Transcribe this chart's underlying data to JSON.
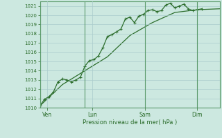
{
  "background_color": "#cce8e0",
  "plot_bg_color": "#cce8e0",
  "grid_color": "#aacccc",
  "line_color": "#2d6e2d",
  "spine_color": "#5a9a6a",
  "xlabel": "Pression niveau de la mer( hPa )",
  "ylim": [
    1010,
    1021.5
  ],
  "ytick_vals": [
    1010,
    1011,
    1012,
    1013,
    1014,
    1015,
    1016,
    1017,
    1018,
    1019,
    1020,
    1021
  ],
  "xtick_labels": [
    "Ven",
    "Lun",
    "Sam",
    "Dim"
  ],
  "xtick_positions": [
    0.5,
    3.5,
    7.0,
    10.5
  ],
  "vline_positions": [
    0.0,
    3.0,
    7.0,
    10.5
  ],
  "xlim": [
    0.0,
    12.0
  ],
  "series1_x": [
    0.0,
    0.3,
    0.6,
    0.9,
    1.2,
    1.5,
    1.8,
    2.1,
    2.4,
    2.7,
    3.0,
    3.3,
    3.6,
    3.9,
    4.2,
    4.5,
    4.8,
    5.1,
    5.4,
    5.7,
    6.0,
    6.3,
    6.6,
    6.9,
    7.2,
    7.5,
    7.8,
    8.1,
    8.4,
    8.7,
    9.0,
    9.3,
    9.6,
    9.9,
    10.2,
    10.5,
    10.8
  ],
  "series1_y": [
    1010.2,
    1010.9,
    1011.2,
    1011.7,
    1012.8,
    1013.1,
    1013.0,
    1012.8,
    1013.0,
    1013.3,
    1014.5,
    1015.1,
    1015.2,
    1015.6,
    1016.5,
    1017.7,
    1017.9,
    1018.2,
    1018.5,
    1019.6,
    1019.8,
    1019.2,
    1019.9,
    1020.1,
    1020.5,
    1020.6,
    1020.4,
    1020.5,
    1021.1,
    1021.3,
    1020.8,
    1021.0,
    1021.2,
    1020.7,
    1020.5,
    1020.6,
    1020.7
  ],
  "series2_x": [
    0.0,
    1.5,
    3.0,
    4.5,
    6.0,
    7.5,
    9.0,
    10.5,
    12.0
  ],
  "series2_y": [
    1010.2,
    1012.5,
    1014.0,
    1015.5,
    1017.8,
    1019.2,
    1020.3,
    1020.6,
    1020.7
  ]
}
